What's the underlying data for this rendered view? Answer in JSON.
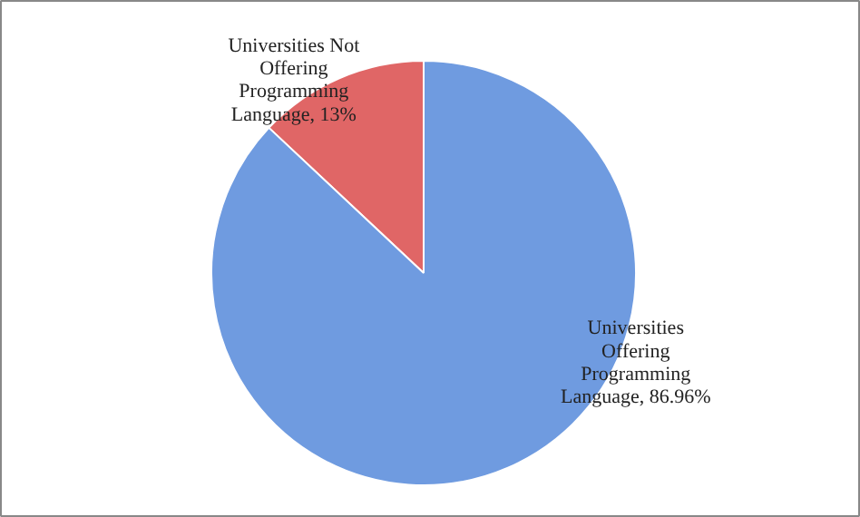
{
  "chart_data": {
    "type": "pie",
    "categories": [
      "Universities Not Offering Programming Language",
      "Universities Offering Programming Language"
    ],
    "values": [
      13,
      86.96
    ],
    "value_labels": [
      "13%",
      "86.96%"
    ],
    "colors": [
      "#e06666",
      "#6f9be0"
    ]
  }
}
